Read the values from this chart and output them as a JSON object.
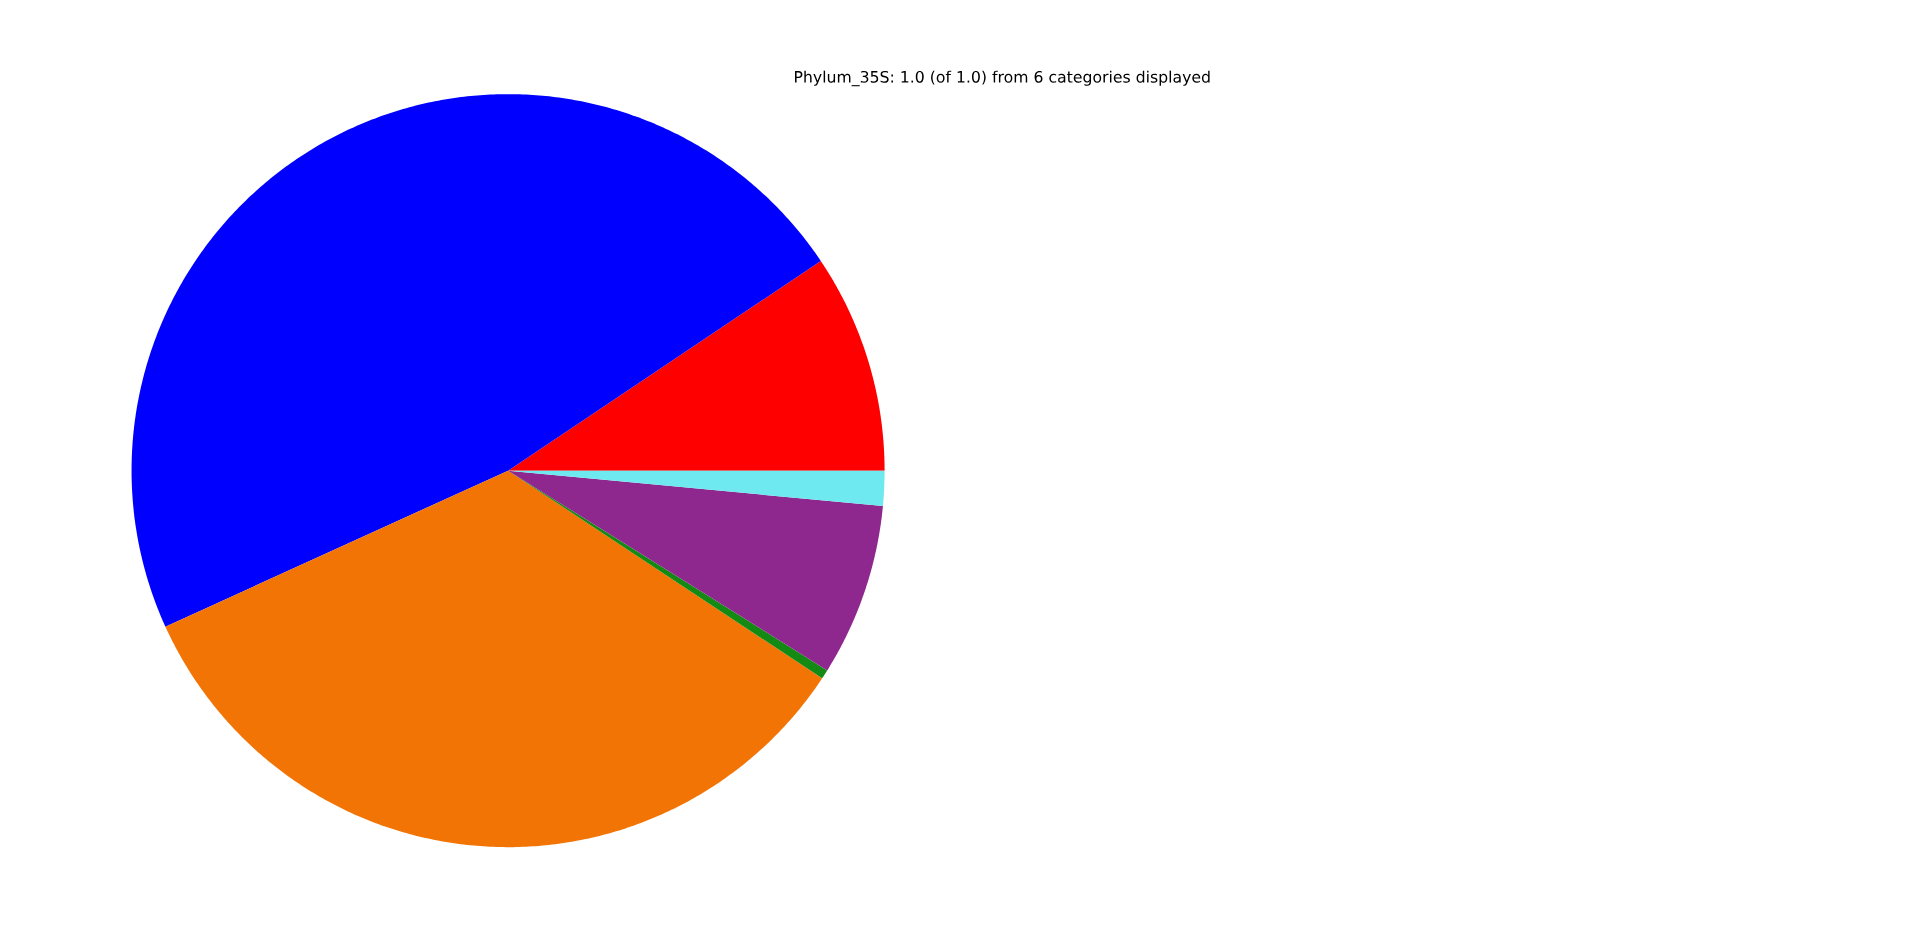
{
  "chart_data": {
    "type": "pie",
    "title": "Phylum_35S: 1.0 (of 1.0) from 6 categories displayed",
    "categories": [
      null,
      null,
      null,
      null,
      null,
      null
    ],
    "values": [
      9.4,
      47.4,
      33.9,
      0.4,
      7.4,
      1.5
    ],
    "colors": [
      "#ff0000",
      "#0000ff",
      "#f27405",
      "#138a13",
      "#8e278e",
      "#6fe9f0"
    ]
  }
}
